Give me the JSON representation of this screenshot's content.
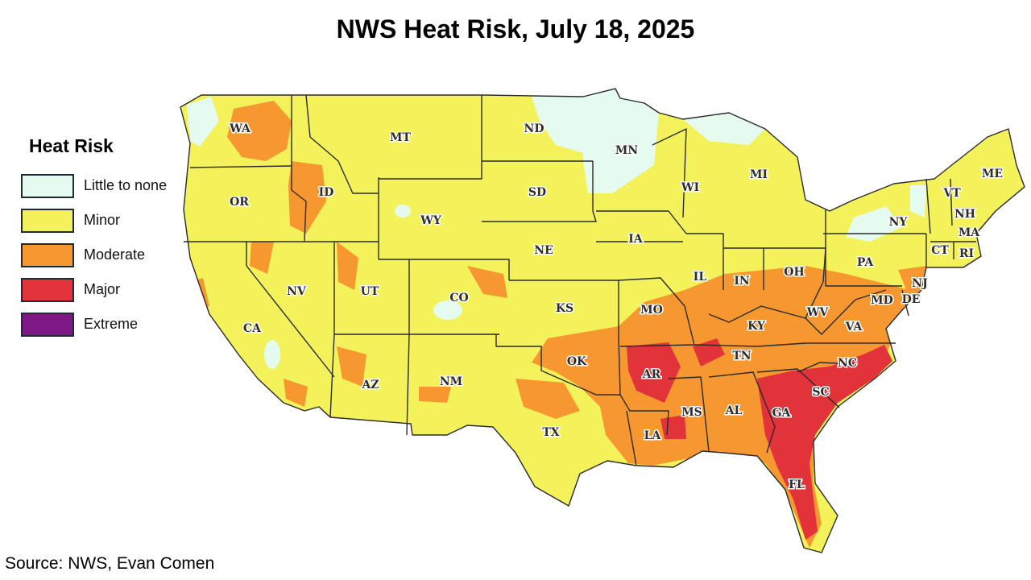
{
  "title": "NWS Heat Risk, July 18, 2025",
  "legend": {
    "title": "Heat Risk",
    "items": [
      {
        "label": "Little to none",
        "color": "#e6fbf0"
      },
      {
        "label": "Minor",
        "color": "#f3f25a"
      },
      {
        "label": "Moderate",
        "color": "#f6982f"
      },
      {
        "label": "Major",
        "color": "#e2323a"
      },
      {
        "label": "Extreme",
        "color": "#7e1886"
      }
    ]
  },
  "states": [
    {
      "abbr": "WA",
      "risk": "Moderate"
    },
    {
      "abbr": "OR",
      "risk": "Minor"
    },
    {
      "abbr": "CA",
      "risk": "Minor"
    },
    {
      "abbr": "ID",
      "risk": "Minor"
    },
    {
      "abbr": "NV",
      "risk": "Minor"
    },
    {
      "abbr": "MT",
      "risk": "Minor"
    },
    {
      "abbr": "WY",
      "risk": "Minor"
    },
    {
      "abbr": "UT",
      "risk": "Minor"
    },
    {
      "abbr": "AZ",
      "risk": "Minor"
    },
    {
      "abbr": "CO",
      "risk": "Minor"
    },
    {
      "abbr": "NM",
      "risk": "Minor"
    },
    {
      "abbr": "ND",
      "risk": "Minor"
    },
    {
      "abbr": "SD",
      "risk": "Minor"
    },
    {
      "abbr": "NE",
      "risk": "Minor"
    },
    {
      "abbr": "KS",
      "risk": "Minor"
    },
    {
      "abbr": "OK",
      "risk": "Moderate"
    },
    {
      "abbr": "TX",
      "risk": "Minor"
    },
    {
      "abbr": "MN",
      "risk": "Little to none"
    },
    {
      "abbr": "IA",
      "risk": "Minor"
    },
    {
      "abbr": "MO",
      "risk": "Moderate"
    },
    {
      "abbr": "AR",
      "risk": "Major"
    },
    {
      "abbr": "LA",
      "risk": "Moderate"
    },
    {
      "abbr": "WI",
      "risk": "Minor"
    },
    {
      "abbr": "IL",
      "risk": "Minor"
    },
    {
      "abbr": "MI",
      "risk": "Minor"
    },
    {
      "abbr": "IN",
      "risk": "Minor"
    },
    {
      "abbr": "OH",
      "risk": "Minor"
    },
    {
      "abbr": "KY",
      "risk": "Moderate"
    },
    {
      "abbr": "TN",
      "risk": "Moderate"
    },
    {
      "abbr": "MS",
      "risk": "Moderate"
    },
    {
      "abbr": "AL",
      "risk": "Moderate"
    },
    {
      "abbr": "GA",
      "risk": "Major"
    },
    {
      "abbr": "FL",
      "risk": "Moderate"
    },
    {
      "abbr": "SC",
      "risk": "Major"
    },
    {
      "abbr": "NC",
      "risk": "Major"
    },
    {
      "abbr": "VA",
      "risk": "Moderate"
    },
    {
      "abbr": "WV",
      "risk": "Moderate"
    },
    {
      "abbr": "PA",
      "risk": "Minor"
    },
    {
      "abbr": "NY",
      "risk": "Minor"
    },
    {
      "abbr": "MD",
      "risk": "Moderate"
    },
    {
      "abbr": "DE",
      "risk": "Moderate"
    },
    {
      "abbr": "NJ",
      "risk": "Moderate"
    },
    {
      "abbr": "CT",
      "risk": "Minor"
    },
    {
      "abbr": "RI",
      "risk": "Minor"
    },
    {
      "abbr": "MA",
      "risk": "Minor"
    },
    {
      "abbr": "VT",
      "risk": "Minor"
    },
    {
      "abbr": "NH",
      "risk": "Minor"
    },
    {
      "abbr": "ME",
      "risk": "Minor"
    }
  ],
  "source": "Source: NWS, Evan Comen"
}
